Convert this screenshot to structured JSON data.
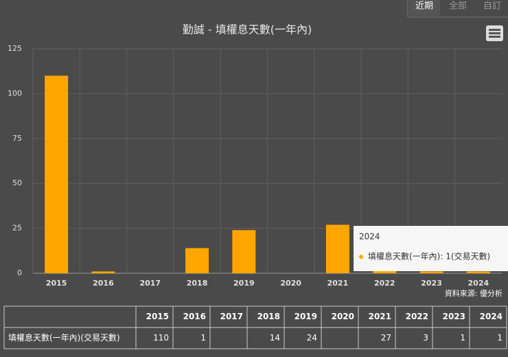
{
  "tabs": [
    "近期",
    "全部",
    "自訂"
  ],
  "chart_data": {
    "type": "bar",
    "title": "勤誠 - 填權息天數(一年內)",
    "categories": [
      "2015",
      "2016",
      "2017",
      "2018",
      "2019",
      "2020",
      "2021",
      "2022",
      "2023",
      "2024"
    ],
    "series": [
      {
        "name": "填權息天數(一年內)",
        "color": "#ffa500",
        "values": [
          110,
          1,
          null,
          14,
          24,
          null,
          27,
          3,
          1,
          1
        ]
      }
    ],
    "ylim": [
      0,
      125
    ],
    "yticks": [
      0,
      25,
      50,
      75,
      100,
      125
    ],
    "grid": true,
    "source": "資料來源: 優分析",
    "tooltip": {
      "title": "2024",
      "text": "填權息天數(一年內): 1(交易天數)"
    },
    "table_row_label": "填權息天數(一年內)(交易天數)"
  }
}
